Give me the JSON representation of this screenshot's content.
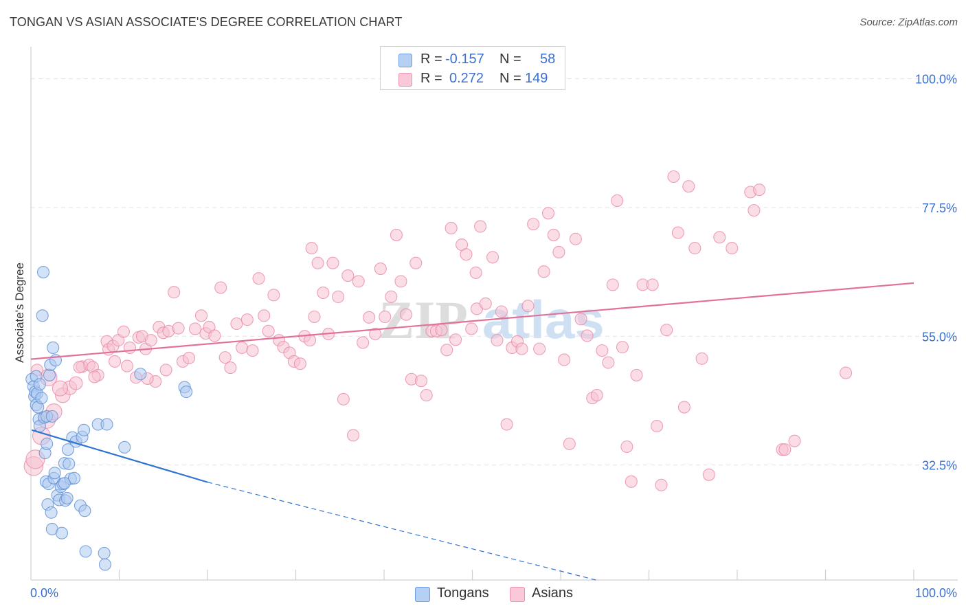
{
  "header": {
    "title": "TONGAN VS ASIAN ASSOCIATE'S DEGREE CORRELATION CHART",
    "source": "Source: ZipAtlas.com"
  },
  "legend": {
    "rows": [
      {
        "r_label": "R =",
        "r_value": "-0.157",
        "n_label": "N =",
        "n_value": "58"
      },
      {
        "r_label": "R =",
        "r_value": "0.272",
        "n_label": "N =",
        "n_value": "149"
      }
    ]
  },
  "bottom_legend": {
    "tongans": "Tongans",
    "asians": "Asians"
  },
  "colors": {
    "tongan_fill": "#aecbf0",
    "tongan_stroke": "#5b8fd6",
    "tongan_line": "#2e74d0",
    "asian_fill": "#f7c1d2",
    "asian_stroke": "#e889a8",
    "asian_line": "#e2719a",
    "axis_label": "#3a6fd0",
    "grid": "#e3e3e3"
  },
  "chart_data": {
    "type": "scatter",
    "title": "TONGAN VS ASIAN ASSOCIATE'S DEGREE CORRELATION CHART",
    "xlabel": "",
    "ylabel": "Associate's Degree",
    "xlim": [
      0,
      100
    ],
    "ylim": [
      12.4,
      104.4
    ],
    "x_tick_labels": [
      "0.0%",
      "100.0%"
    ],
    "y_ticks": [
      32.5,
      55.0,
      77.5,
      100.0
    ],
    "y_tick_labels": [
      "32.5%",
      "55.0%",
      "77.5%",
      "100.0%"
    ],
    "watermark": "ZIPatlas",
    "series": [
      {
        "name": "Tongans",
        "R": -0.157,
        "N": 58,
        "trend": {
          "x0": 0.1,
          "y0": 38.6,
          "x1": 20.0,
          "y1": 29.5,
          "x_dash_end": 64.0,
          "y_dash_end": 12.4
        },
        "points": [
          [
            0.1,
            47.5
          ],
          [
            0.3,
            46.2
          ],
          [
            0.4,
            44.5
          ],
          [
            0.5,
            45.3
          ],
          [
            0.6,
            43.0
          ],
          [
            0.6,
            48.0
          ],
          [
            0.7,
            45.0
          ],
          [
            0.8,
            42.6
          ],
          [
            0.9,
            40.5
          ],
          [
            1.0,
            39.3
          ],
          [
            1.2,
            44.2
          ],
          [
            1.3,
            58.6
          ],
          [
            1.4,
            66.2
          ],
          [
            1.5,
            40.8
          ],
          [
            1.6,
            34.6
          ],
          [
            1.7,
            29.6
          ],
          [
            1.8,
            36.2
          ],
          [
            1.8,
            41.0
          ],
          [
            1.9,
            25.6
          ],
          [
            2.0,
            29.2
          ],
          [
            2.1,
            48.2
          ],
          [
            2.2,
            50.0
          ],
          [
            2.3,
            24.2
          ],
          [
            2.4,
            21.3
          ],
          [
            2.5,
            53.0
          ],
          [
            2.6,
            30.2
          ],
          [
            2.7,
            31.1
          ],
          [
            2.8,
            50.8
          ],
          [
            3.0,
            27.2
          ],
          [
            3.2,
            26.4
          ],
          [
            3.4,
            28.7
          ],
          [
            3.5,
            20.6
          ],
          [
            3.6,
            29.2
          ],
          [
            3.8,
            32.8
          ],
          [
            3.9,
            26.3
          ],
          [
            4.1,
            26.7
          ],
          [
            4.2,
            35.2
          ],
          [
            4.3,
            32.7
          ],
          [
            4.5,
            30.1
          ],
          [
            4.7,
            37.3
          ],
          [
            4.9,
            30.2
          ],
          [
            5.1,
            36.6
          ],
          [
            5.6,
            25.4
          ],
          [
            5.8,
            37.4
          ],
          [
            6.0,
            38.6
          ],
          [
            6.1,
            24.5
          ],
          [
            6.2,
            17.4
          ],
          [
            7.6,
            39.6
          ],
          [
            8.3,
            17.1
          ],
          [
            8.4,
            15.1
          ],
          [
            8.6,
            39.6
          ],
          [
            10.6,
            35.6
          ],
          [
            12.4,
            48.4
          ],
          [
            17.4,
            46.1
          ],
          [
            17.6,
            45.3
          ],
          [
            2.4,
            41.0
          ],
          [
            3.8,
            29.3
          ],
          [
            1.0,
            46.6
          ]
        ]
      },
      {
        "name": "Asians",
        "R": 0.272,
        "N": 149,
        "trend": {
          "x0": 0.0,
          "y0": 51.0,
          "x1": 100.0,
          "y1": 64.3
        },
        "points": [
          [
            0.3,
            32.3
          ],
          [
            0.5,
            33.5
          ],
          [
            1.2,
            37.6
          ],
          [
            1.8,
            40.4
          ],
          [
            2.6,
            41.8
          ],
          [
            3.6,
            44.7
          ],
          [
            4.4,
            46.0
          ],
          [
            5.1,
            46.8
          ],
          [
            5.8,
            49.7
          ],
          [
            6.6,
            50.0
          ],
          [
            7.0,
            49.6
          ],
          [
            7.6,
            48.2
          ],
          [
            8.6,
            54.1
          ],
          [
            8.8,
            52.7
          ],
          [
            9.3,
            53.3
          ],
          [
            9.9,
            54.3
          ],
          [
            10.5,
            55.8
          ],
          [
            10.9,
            49.8
          ],
          [
            11.2,
            53.0
          ],
          [
            11.9,
            47.8
          ],
          [
            12.2,
            54.8
          ],
          [
            12.6,
            55.0
          ],
          [
            13.0,
            52.8
          ],
          [
            13.6,
            54.3
          ],
          [
            14.1,
            47.1
          ],
          [
            14.5,
            56.6
          ],
          [
            15.0,
            55.6
          ],
          [
            15.6,
            55.9
          ],
          [
            16.2,
            62.7
          ],
          [
            16.7,
            56.4
          ],
          [
            17.2,
            50.6
          ],
          [
            17.9,
            51.2
          ],
          [
            18.6,
            56.3
          ],
          [
            19.3,
            58.6
          ],
          [
            19.8,
            55.5
          ],
          [
            20.2,
            56.6
          ],
          [
            20.8,
            55.1
          ],
          [
            21.5,
            63.5
          ],
          [
            22.0,
            51.3
          ],
          [
            22.6,
            49.5
          ],
          [
            23.3,
            57.2
          ],
          [
            23.9,
            53.0
          ],
          [
            24.5,
            57.9
          ],
          [
            25.1,
            52.5
          ],
          [
            25.8,
            65.1
          ],
          [
            26.4,
            58.6
          ],
          [
            26.9,
            55.9
          ],
          [
            27.5,
            62.2
          ],
          [
            28.1,
            54.3
          ],
          [
            28.6,
            53.1
          ],
          [
            29.3,
            52.1
          ],
          [
            29.8,
            50.6
          ],
          [
            30.5,
            50.2
          ],
          [
            31.0,
            55.0
          ],
          [
            31.6,
            54.3
          ],
          [
            32.1,
            58.4
          ],
          [
            31.8,
            70.4
          ],
          [
            32.5,
            67.8
          ],
          [
            33.1,
            62.6
          ],
          [
            33.7,
            55.4
          ],
          [
            34.2,
            67.8
          ],
          [
            34.8,
            61.9
          ],
          [
            35.4,
            44.0
          ],
          [
            35.9,
            65.6
          ],
          [
            36.5,
            37.7
          ],
          [
            37.1,
            64.6
          ],
          [
            37.6,
            53.9
          ],
          [
            38.3,
            58.3
          ],
          [
            39.0,
            55.4
          ],
          [
            39.6,
            66.8
          ],
          [
            40.1,
            58.4
          ],
          [
            40.8,
            61.9
          ],
          [
            41.4,
            72.7
          ],
          [
            41.9,
            64.6
          ],
          [
            42.5,
            58.8
          ],
          [
            43.1,
            47.5
          ],
          [
            43.6,
            67.8
          ],
          [
            44.2,
            47.2
          ],
          [
            44.8,
            44.7
          ],
          [
            45.4,
            55.9
          ],
          [
            45.9,
            55.9
          ],
          [
            46.5,
            56.1
          ],
          [
            47.1,
            52.6
          ],
          [
            47.6,
            73.9
          ],
          [
            48.1,
            54.4
          ],
          [
            48.8,
            71.0
          ],
          [
            49.3,
            69.3
          ],
          [
            49.9,
            56.3
          ],
          [
            50.4,
            66.1
          ],
          [
            50.9,
            74.2
          ],
          [
            50.5,
            59.8
          ],
          [
            51.5,
            60.7
          ],
          [
            52.3,
            68.8
          ],
          [
            52.8,
            54.3
          ],
          [
            53.3,
            59.3
          ],
          [
            53.9,
            39.6
          ],
          [
            54.5,
            53.0
          ],
          [
            55.1,
            54.1
          ],
          [
            55.6,
            52.8
          ],
          [
            56.3,
            60.3
          ],
          [
            56.9,
            74.6
          ],
          [
            57.6,
            52.8
          ],
          [
            58.1,
            66.3
          ],
          [
            58.6,
            76.5
          ],
          [
            59.2,
            72.7
          ],
          [
            59.8,
            69.7
          ],
          [
            60.4,
            50.9
          ],
          [
            61.0,
            36.2
          ],
          [
            61.7,
            72.0
          ],
          [
            62.3,
            58.0
          ],
          [
            63.0,
            55.1
          ],
          [
            63.6,
            44.2
          ],
          [
            64.1,
            44.7
          ],
          [
            64.7,
            52.5
          ],
          [
            65.4,
            50.4
          ],
          [
            65.9,
            64.0
          ],
          [
            66.4,
            78.7
          ],
          [
            67.0,
            53.1
          ],
          [
            67.5,
            35.7
          ],
          [
            68.0,
            29.6
          ],
          [
            68.6,
            48.2
          ],
          [
            69.3,
            64.0
          ],
          [
            70.4,
            64.0
          ],
          [
            70.9,
            39.3
          ],
          [
            71.4,
            29.0
          ],
          [
            72.0,
            56.1
          ],
          [
            72.8,
            82.9
          ],
          [
            73.3,
            73.1
          ],
          [
            74.0,
            42.6
          ],
          [
            74.5,
            81.2
          ],
          [
            75.2,
            70.4
          ],
          [
            76.0,
            51.1
          ],
          [
            76.8,
            30.8
          ],
          [
            78.0,
            72.3
          ],
          [
            79.4,
            70.4
          ],
          [
            81.5,
            80.2
          ],
          [
            81.9,
            77.0
          ],
          [
            82.5,
            80.6
          ],
          [
            85.1,
            35.2
          ],
          [
            85.4,
            35.2
          ],
          [
            86.5,
            36.7
          ],
          [
            92.3,
            48.6
          ],
          [
            0.7,
            49.1
          ],
          [
            2.0,
            47.8
          ],
          [
            3.3,
            45.9
          ],
          [
            5.5,
            49.6
          ],
          [
            7.2,
            47.9
          ],
          [
            9.5,
            50.6
          ],
          [
            13.2,
            47.6
          ],
          [
            15.3,
            49.1
          ]
        ]
      }
    ]
  }
}
